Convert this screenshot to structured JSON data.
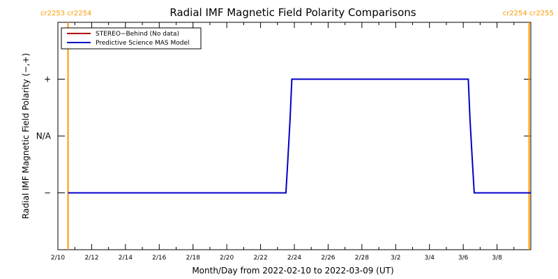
{
  "chart_data": {
    "type": "line",
    "title": "Radial IMF Magnetic Field Polarity Comparisons",
    "xlabel": "Month/Day from 2022-02-10 to 2022-03-09 (UT)",
    "ylabel": "Radial IMF Magnetic Field Polarity (−,+)",
    "x_tick_labels": [
      "2/10",
      "2/12",
      "2/14",
      "2/16",
      "2/18",
      "2/20",
      "2/22",
      "2/24",
      "2/26",
      "2/28",
      "3/2",
      "3/4",
      "3/6",
      "3/8"
    ],
    "y_tick_labels": [
      "−",
      "N/A",
      "+"
    ],
    "y_tick_values": [
      -1,
      0,
      1
    ],
    "xlim_days": [
      0,
      28
    ],
    "ylim": [
      -2,
      2
    ],
    "carrington_markers": [
      {
        "x_day": 0.6,
        "labels": "cr2253 cr2254",
        "color": "#ff9900",
        "side": "left"
      },
      {
        "x_day": 27.9,
        "labels": "cr2254 cr2255",
        "color": "#ff9900",
        "side": "right"
      }
    ],
    "series": [
      {
        "name": "STEREO−Behind (No data)",
        "color": "#b00000",
        "points": []
      },
      {
        "name": "Predictive Science MAS Model",
        "color": "#0000c8",
        "points": [
          [
            0.6,
            -1
          ],
          [
            13.5,
            -1
          ],
          [
            13.6,
            -0.5
          ],
          [
            13.75,
            0.3
          ],
          [
            13.85,
            1
          ],
          [
            24.3,
            1
          ],
          [
            24.4,
            0.3
          ],
          [
            24.55,
            -0.5
          ],
          [
            24.65,
            -1
          ],
          [
            28,
            -1
          ]
        ]
      }
    ]
  }
}
